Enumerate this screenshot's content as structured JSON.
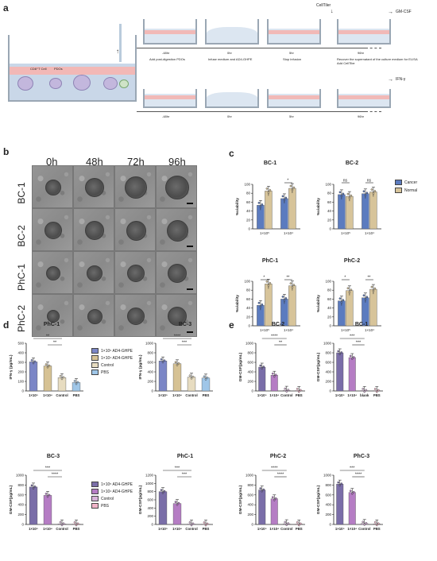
{
  "panel_labels": {
    "a": "a",
    "b": "b",
    "c": "c",
    "d": "d",
    "e": "e"
  },
  "panel_a": {
    "cell_label": "CD8⁺T Cell",
    "pdo_label": "PDOs",
    "timeline1": {
      "t0": "-48hr",
      "t1": "0hr",
      "t2": "5hr",
      "t3": "96hr",
      "step0": "Add post-digestion PDOs",
      "step1": "Infuse medium and AD4-GHPE",
      "step2": "Stop infusion",
      "step3": "Recover the supernatant of the culture medium for ELISA Add CellTiler",
      "reagent_top": "CellTiler",
      "readout": "GM-CSF"
    },
    "timeline2": {
      "t0": "-48hr",
      "t1": "0hr",
      "t2": "5hr",
      "t3": "96hr",
      "readout": "IFN-γ"
    }
  },
  "panel_b": {
    "time_headers": [
      "0h",
      "48h",
      "72h",
      "96h"
    ],
    "row_labels": [
      "BC-1",
      "BC-2",
      "PhC-1",
      "PhC-2"
    ]
  },
  "legend_c": {
    "cancer": "Cancer",
    "normal": "Normal",
    "cancer_color": "#5b7bbf",
    "normal_color": "#d7c49a"
  },
  "legend_d": [
    "1×10⁵ AD4-GHPE",
    "1×10⁴ AD4-GHPE",
    "Control",
    "PBS"
  ],
  "legend_d_colors": [
    "#7b86c6",
    "#d6c294",
    "#e7dcc0",
    "#9fc6e8"
  ],
  "legend_e": [
    "1×10⁵ AD4-GHPE",
    "1×10⁴ AD4-GHPE",
    "Control",
    "PBS"
  ],
  "legend_e_colors": [
    "#7a6ea8",
    "#b57dc4",
    "#d8b3d9",
    "#f0b4c8"
  ],
  "chart_data": [
    {
      "id": "c-bc1",
      "type": "bar",
      "title": "BC-1",
      "ylabel": "%viability",
      "ylim": [
        0,
        100
      ],
      "yticks": [
        0,
        20,
        40,
        60,
        80,
        100
      ],
      "categories": [
        "1×10⁵",
        "1×10⁴"
      ],
      "series": [
        {
          "name": "Cancer",
          "values": [
            53,
            68
          ]
        },
        {
          "name": "Normal",
          "values": [
            85,
            91
          ]
        }
      ],
      "sig": [
        {
          "group": 1,
          "text": "*"
        }
      ]
    },
    {
      "id": "c-bc2",
      "type": "bar",
      "title": "BC-2",
      "ylabel": "%viability",
      "ylim": [
        0,
        100
      ],
      "yticks": [
        0,
        20,
        40,
        60,
        80,
        100
      ],
      "categories": [
        "1×10⁵",
        "1×10⁴"
      ],
      "series": [
        {
          "name": "Cancer",
          "values": [
            77,
            79
          ]
        },
        {
          "name": "Normal",
          "values": [
            73,
            83
          ]
        }
      ],
      "sig": [
        {
          "group": 0,
          "text": "ns"
        },
        {
          "group": 1,
          "text": "ns"
        }
      ]
    },
    {
      "id": "c-phc1",
      "type": "bar",
      "title": "PhC-1",
      "ylabel": "%viability",
      "ylim": [
        0,
        100
      ],
      "yticks": [
        0,
        20,
        40,
        60,
        80,
        100
      ],
      "categories": [
        "1×10⁵",
        "1×10⁴"
      ],
      "series": [
        {
          "name": "Cancer",
          "values": [
            46,
            60
          ]
        },
        {
          "name": "Normal",
          "values": [
            94,
            90
          ]
        }
      ],
      "sig": [
        {
          "group": 0,
          "text": "*"
        },
        {
          "group": 1,
          "text": "**"
        }
      ]
    },
    {
      "id": "c-phc2",
      "type": "bar",
      "title": "PhC-2",
      "ylabel": "%viability",
      "ylim": [
        0,
        100
      ],
      "yticks": [
        0,
        20,
        40,
        60,
        80,
        100
      ],
      "categories": [
        "1×10⁵",
        "1×10⁴"
      ],
      "series": [
        {
          "name": "Cancer",
          "values": [
            56,
            63
          ]
        },
        {
          "name": "Normal",
          "values": [
            79,
            82
          ]
        }
      ],
      "sig": [
        {
          "group": 0,
          "text": "*"
        },
        {
          "group": 1,
          "text": "**"
        }
      ]
    },
    {
      "id": "d-phc1",
      "type": "bar",
      "title": "PhC-1",
      "ylabel": "IFN-γ (pg/mL)",
      "ylim": [
        0,
        500
      ],
      "yticks": [
        0,
        100,
        200,
        300,
        400,
        500
      ],
      "categories": [
        "1×10⁵",
        "1×10⁴",
        "Control",
        "PBS"
      ],
      "values": [
        305,
        262,
        140,
        88
      ],
      "sig": [
        {
          "from": 0,
          "to": 2,
          "text": "**"
        },
        {
          "from": 1,
          "to": 2,
          "text": "**"
        }
      ]
    },
    {
      "id": "d-bc3",
      "type": "bar",
      "title": "BC-3",
      "ylabel": "IFN-γ (pg/mL)",
      "ylim": [
        0,
        1000
      ],
      "yticks": [
        0,
        200,
        400,
        600,
        800,
        1000
      ],
      "categories": [
        "1×10⁵",
        "1×10⁴",
        "Control",
        "PBS"
      ],
      "values": [
        630,
        570,
        290,
        270
      ],
      "sig": [
        {
          "from": 0,
          "to": 2,
          "text": "****"
        },
        {
          "from": 1,
          "to": 2,
          "text": "***"
        }
      ]
    },
    {
      "id": "e-bc2",
      "type": "bar",
      "title": "BC-2",
      "ylabel": "GM-CSF(pg/mL)",
      "ylim": [
        0,
        1000
      ],
      "yticks": [
        0,
        200,
        400,
        600,
        800,
        1000
      ],
      "categories": [
        "1×10⁵",
        "1×10⁴",
        "Control",
        "PBS"
      ],
      "values": [
        500,
        330,
        15,
        10
      ],
      "sig": [
        {
          "from": 0,
          "to": 2,
          "text": "****"
        },
        {
          "from": 1,
          "to": 2,
          "text": "**"
        }
      ]
    },
    {
      "id": "e-bc1",
      "type": "bar",
      "title": "BC-1",
      "ylabel": "GM-CSF(pg/mL)",
      "ylim": [
        0,
        1000
      ],
      "yticks": [
        0,
        200,
        400,
        600,
        800,
        1000
      ],
      "categories": [
        "1×10⁵",
        "1×10⁴",
        "blank",
        "PBS"
      ],
      "values": [
        800,
        700,
        10,
        8
      ],
      "sig": [
        {
          "from": 0,
          "to": 2,
          "text": "***"
        },
        {
          "from": 1,
          "to": 2,
          "text": "***"
        }
      ]
    },
    {
      "id": "e-bc3",
      "type": "bar",
      "title": "BC-3",
      "ylabel": "GM-CSF(pg/mL)",
      "ylim": [
        0,
        1000
      ],
      "yticks": [
        0,
        200,
        400,
        600,
        800,
        1000
      ],
      "categories": [
        "1×10⁵",
        "1×10⁴",
        "Control",
        "PBS"
      ],
      "values": [
        760,
        590,
        12,
        10
      ],
      "sig": [
        {
          "from": 0,
          "to": 2,
          "text": "***"
        },
        {
          "from": 1,
          "to": 2,
          "text": "****"
        }
      ]
    },
    {
      "id": "e-phc1",
      "type": "bar",
      "title": "PhC-1",
      "ylabel": "GM-CSF(pg/mL)",
      "ylim": [
        0,
        1200
      ],
      "yticks": [
        0,
        200,
        400,
        600,
        800,
        1000,
        1200
      ],
      "categories": [
        "1×10⁵",
        "1×10⁴",
        "Control",
        "PBS"
      ],
      "values": [
        800,
        510,
        12,
        10
      ],
      "sig": [
        {
          "from": 0,
          "to": 2,
          "text": "***"
        },
        {
          "from": 1,
          "to": 2,
          "text": "***"
        }
      ]
    },
    {
      "id": "e-phc2",
      "type": "bar",
      "title": "PhC-2",
      "ylabel": "GM-CSF(pg/mL)",
      "ylim": [
        0,
        1000
      ],
      "yticks": [
        0,
        200,
        400,
        600,
        800,
        1000
      ],
      "categories": [
        "1×10⁵",
        "1×10⁴",
        "Control",
        "PBS"
      ],
      "values": [
        700,
        520,
        15,
        10
      ],
      "sig": [
        {
          "from": 0,
          "to": 2,
          "text": "****"
        },
        {
          "from": 1,
          "to": 2,
          "text": "****"
        }
      ]
    },
    {
      "id": "e-phc3",
      "type": "bar",
      "title": "PhC-3",
      "ylabel": "GM-CSF(pg/mL)",
      "ylim": [
        0,
        1000
      ],
      "yticks": [
        0,
        200,
        400,
        600,
        800,
        1000
      ],
      "categories": [
        "1×10⁵",
        "1×10⁴",
        "Control",
        "PBS"
      ],
      "values": [
        820,
        650,
        20,
        12
      ],
      "sig": [
        {
          "from": 0,
          "to": 2,
          "text": "***"
        },
        {
          "from": 1,
          "to": 2,
          "text": "****"
        }
      ]
    }
  ]
}
